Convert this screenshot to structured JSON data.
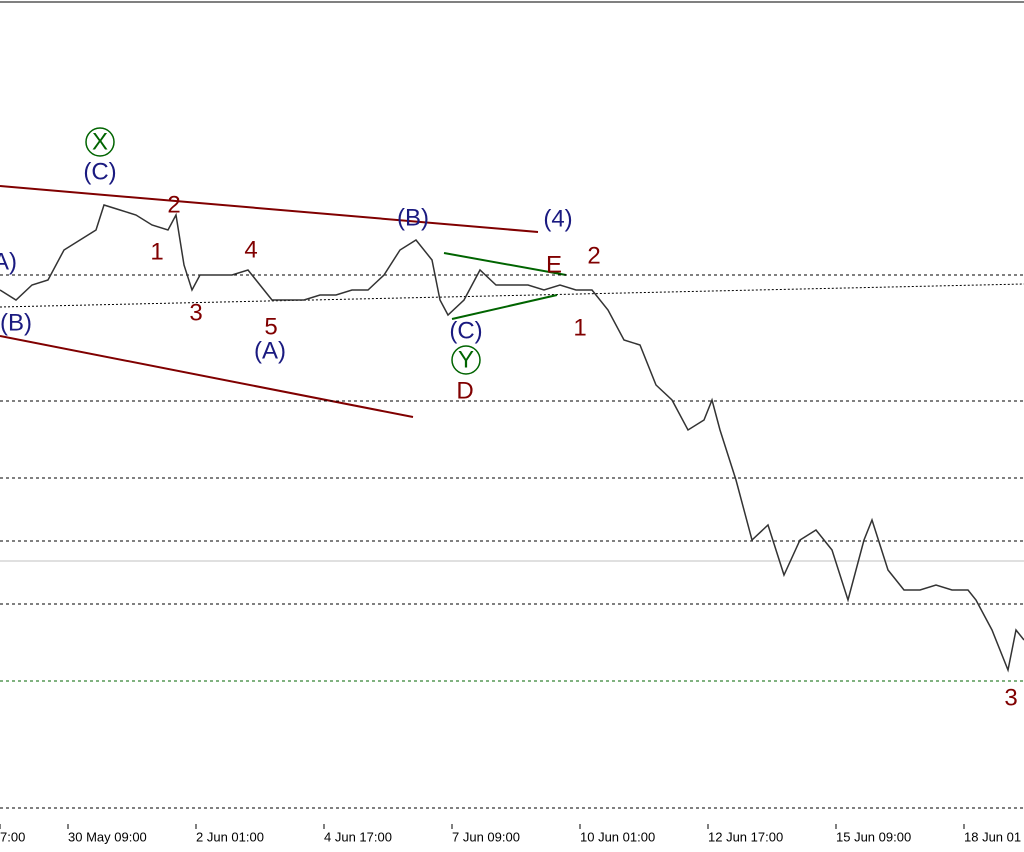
{
  "chart_data": {
    "type": "line",
    "color": "#333333",
    "x": [
      0,
      8,
      16,
      24,
      32,
      40,
      48,
      52,
      60,
      68,
      76,
      84,
      88,
      92,
      96,
      100,
      108,
      116,
      124,
      132,
      136,
      144,
      152,
      160,
      168,
      176,
      184,
      192,
      200,
      208,
      216,
      220,
      224,
      232,
      240,
      248,
      256,
      264,
      272,
      280,
      288,
      296,
      304,
      312,
      320,
      328,
      336,
      344,
      352,
      356,
      360,
      368,
      376,
      384,
      392,
      400,
      408,
      416,
      424,
      432,
      436,
      444,
      452,
      460,
      468,
      476,
      484,
      488,
      496,
      504,
      508,
      512
    ],
    "values": [
      530,
      520,
      535,
      540,
      570,
      580,
      590,
      615,
      610,
      605,
      595,
      590,
      605,
      555,
      530,
      545,
      545,
      545,
      550,
      530,
      520,
      520,
      520,
      525,
      525,
      530,
      530,
      545,
      570,
      580,
      560,
      520,
      505,
      520,
      550,
      535,
      535,
      535,
      530,
      535,
      530,
      530,
      510,
      480,
      475,
      435,
      420,
      390,
      400,
      420,
      390,
      340,
      280,
      295,
      245,
      280,
      290,
      270,
      220,
      280,
      300,
      250,
      230,
      230,
      235,
      230,
      230,
      220,
      190,
      150,
      190,
      180
    ],
    "xlim": [
      0,
      512
    ],
    "ylim": [
      0,
      820
    ],
    "xticks": [
      {
        "value": 0,
        "label": "7:00"
      },
      {
        "value": 34,
        "label": "30 May 09:00"
      },
      {
        "value": 98,
        "label": "2 Jun 01:00"
      },
      {
        "value": 162,
        "label": "4 Jun 17:00"
      },
      {
        "value": 226,
        "label": "7 Jun 09:00"
      },
      {
        "value": 290,
        "label": "10 Jun 01:00"
      },
      {
        "value": 354,
        "label": "12 Jun 17:00"
      },
      {
        "value": 418,
        "label": "15 Jun 09:00"
      },
      {
        "value": 482,
        "label": "18 Jun 01"
      }
    ],
    "levels": [
      {
        "value": 545,
        "color": "#000000",
        "dashed": true
      },
      {
        "value": 419,
        "color": "#000000",
        "dashed": true
      },
      {
        "value": 342,
        "color": "#000000",
        "dashed": true
      },
      {
        "value": 279,
        "color": "#000000",
        "dashed": true
      },
      {
        "value": 259,
        "color": "#c0c0c0",
        "dashed": false
      },
      {
        "value": 216,
        "color": "#000000",
        "dashed": true
      },
      {
        "value": 139,
        "color": "#006400",
        "dashed": true
      },
      {
        "value": 12,
        "color": "#000000",
        "dashed": true
      }
    ],
    "annotations": [
      {
        "text": "(C)",
        "color": "#1a1a80"
      },
      {
        "text": "X",
        "color": "#006400",
        "circled": true
      },
      {
        "text": "2",
        "color": "#800000"
      },
      {
        "text": "1",
        "color": "#800000"
      },
      {
        "text": "4",
        "color": "#800000"
      },
      {
        "text": "3",
        "color": "#800000"
      },
      {
        "text": "5",
        "color": "#800000"
      },
      {
        "text": "(A)",
        "color": "#1a1a80"
      },
      {
        "text": "(B)",
        "color": "#1a1a80"
      },
      {
        "text": "(4)",
        "color": "#1a1a80"
      },
      {
        "text": "E",
        "color": "#800000"
      },
      {
        "text": "2",
        "color": "#800000"
      },
      {
        "text": "(C)",
        "color": "#1a1a80"
      },
      {
        "text": "Y",
        "color": "#006400",
        "circled": true
      },
      {
        "text": "D",
        "color": "#800000"
      },
      {
        "text": "1",
        "color": "#800000"
      },
      {
        "text": "(B)",
        "color": "#1a1a80"
      },
      {
        "text": "A)",
        "color": "#1a1a80"
      },
      {
        "text": "3",
        "color": "#800000"
      }
    ]
  }
}
